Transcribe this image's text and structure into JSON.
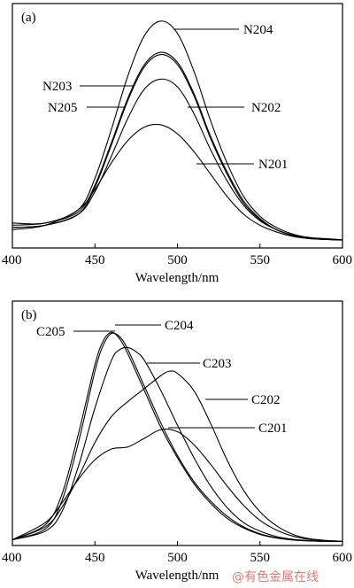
{
  "watermark": "@有色金属在线",
  "chart_data": [
    {
      "type": "line",
      "panel_label": "(a)",
      "xlabel": "Wavelength/nm",
      "ylabel": "",
      "xlim": [
        400,
        600
      ],
      "ylim": [
        0,
        1.0
      ],
      "xticks": [
        400,
        450,
        500,
        550,
        600
      ],
      "series": [
        {
          "name": "N204",
          "x": [
            400,
            420,
            440,
            450,
            460,
            470,
            480,
            490,
            500,
            510,
            520,
            530,
            540,
            550,
            560,
            570,
            580,
            590,
            600
          ],
          "y": [
            0.08,
            0.08,
            0.14,
            0.28,
            0.5,
            0.74,
            0.92,
            0.985,
            0.93,
            0.76,
            0.54,
            0.35,
            0.2,
            0.11,
            0.06,
            0.03,
            0.015,
            0.01,
            0.005
          ]
        },
        {
          "name": "N203",
          "x": [
            400,
            420,
            440,
            450,
            460,
            470,
            480,
            490,
            500,
            510,
            520,
            530,
            540,
            550,
            560,
            570,
            580,
            590,
            600
          ],
          "y": [
            0.07,
            0.08,
            0.13,
            0.25,
            0.44,
            0.64,
            0.79,
            0.845,
            0.8,
            0.66,
            0.47,
            0.31,
            0.18,
            0.1,
            0.05,
            0.025,
            0.012,
            0.008,
            0.004
          ]
        },
        {
          "name": "N205",
          "x": [
            400,
            420,
            440,
            450,
            460,
            470,
            480,
            490,
            500,
            510,
            520,
            530,
            540,
            550,
            560,
            570,
            580,
            590,
            600
          ],
          "y": [
            0.06,
            0.07,
            0.12,
            0.24,
            0.43,
            0.63,
            0.78,
            0.835,
            0.79,
            0.65,
            0.46,
            0.3,
            0.17,
            0.095,
            0.05,
            0.024,
            0.011,
            0.007,
            0.004
          ]
        },
        {
          "name": "N202",
          "x": [
            400,
            420,
            440,
            450,
            460,
            470,
            480,
            490,
            500,
            510,
            520,
            530,
            540,
            550,
            560,
            570,
            580,
            590,
            600
          ],
          "y": [
            0.06,
            0.07,
            0.12,
            0.22,
            0.38,
            0.55,
            0.68,
            0.725,
            0.69,
            0.57,
            0.41,
            0.27,
            0.16,
            0.09,
            0.05,
            0.024,
            0.011,
            0.007,
            0.004
          ]
        },
        {
          "name": "N201",
          "x": [
            400,
            420,
            440,
            450,
            460,
            470,
            480,
            490,
            500,
            510,
            520,
            530,
            540,
            550,
            560,
            570,
            580,
            590,
            600
          ],
          "y": [
            0.05,
            0.07,
            0.14,
            0.23,
            0.35,
            0.45,
            0.51,
            0.52,
            0.48,
            0.4,
            0.3,
            0.2,
            0.12,
            0.07,
            0.04,
            0.02,
            0.01,
            0.006,
            0.003
          ]
        }
      ]
    },
    {
      "type": "line",
      "panel_label": "(b)",
      "xlabel": "Wavelength/nm",
      "ylabel": "",
      "xlim": [
        400,
        600
      ],
      "ylim": [
        0,
        1.0
      ],
      "xticks": [
        400,
        450,
        500,
        550,
        600
      ],
      "series": [
        {
          "name": "C205",
          "x": [
            400,
            420,
            430,
            440,
            450,
            455,
            460,
            465,
            470,
            480,
            490,
            500,
            510,
            520,
            530,
            540,
            550,
            560,
            570,
            580,
            590,
            600
          ],
          "y": [
            0.01,
            0.08,
            0.22,
            0.5,
            0.82,
            0.93,
            0.97,
            0.94,
            0.87,
            0.7,
            0.53,
            0.39,
            0.27,
            0.18,
            0.11,
            0.065,
            0.035,
            0.018,
            0.009,
            0.005,
            0.003,
            0.002
          ]
        },
        {
          "name": "C204",
          "x": [
            400,
            420,
            430,
            440,
            450,
            455,
            460,
            465,
            470,
            480,
            490,
            500,
            510,
            520,
            530,
            540,
            550,
            560,
            570,
            580,
            590,
            600
          ],
          "y": [
            0.01,
            0.06,
            0.19,
            0.46,
            0.79,
            0.91,
            0.965,
            0.95,
            0.89,
            0.72,
            0.55,
            0.4,
            0.28,
            0.19,
            0.12,
            0.07,
            0.038,
            0.02,
            0.01,
            0.005,
            0.003,
            0.002
          ]
        },
        {
          "name": "C203",
          "x": [
            400,
            420,
            430,
            440,
            450,
            460,
            465,
            470,
            475,
            480,
            490,
            500,
            510,
            520,
            530,
            540,
            550,
            560,
            570,
            580,
            590,
            600
          ],
          "y": [
            0.01,
            0.05,
            0.14,
            0.35,
            0.62,
            0.84,
            0.89,
            0.9,
            0.88,
            0.84,
            0.7,
            0.54,
            0.39,
            0.26,
            0.16,
            0.09,
            0.05,
            0.025,
            0.012,
            0.006,
            0.003,
            0.002
          ]
        },
        {
          "name": "C202",
          "x": [
            400,
            420,
            430,
            440,
            450,
            460,
            470,
            480,
            490,
            495,
            500,
            510,
            520,
            530,
            540,
            550,
            560,
            570,
            580,
            590,
            600
          ],
          "y": [
            0.01,
            0.07,
            0.16,
            0.3,
            0.46,
            0.58,
            0.65,
            0.71,
            0.77,
            0.79,
            0.78,
            0.7,
            0.55,
            0.38,
            0.24,
            0.14,
            0.075,
            0.035,
            0.015,
            0.007,
            0.003
          ]
        },
        {
          "name": "C201",
          "x": [
            400,
            420,
            430,
            440,
            450,
            460,
            470,
            480,
            490,
            500,
            510,
            520,
            530,
            540,
            550,
            560,
            570,
            580,
            590,
            600
          ],
          "y": [
            0.01,
            0.09,
            0.18,
            0.29,
            0.38,
            0.43,
            0.44,
            0.48,
            0.52,
            0.51,
            0.45,
            0.36,
            0.26,
            0.17,
            0.1,
            0.055,
            0.027,
            0.012,
            0.006,
            0.003
          ]
        }
      ]
    }
  ]
}
